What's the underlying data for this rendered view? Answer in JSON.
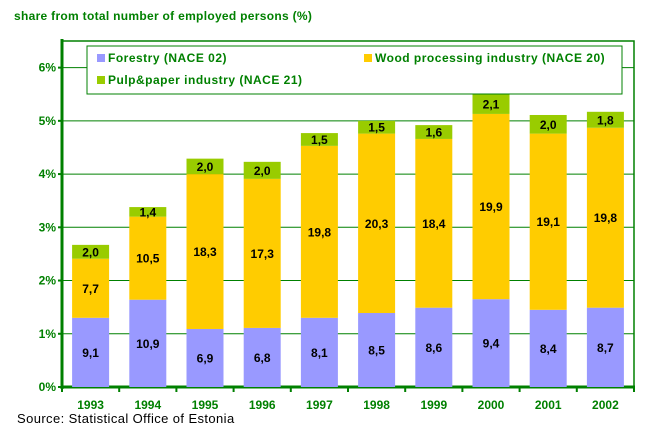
{
  "chart_data": {
    "type": "bar",
    "stacked": true,
    "title": "share from total number of employed persons (%)",
    "xlabel": "",
    "ylabel": "",
    "ylim": [
      0,
      6.5
    ],
    "yticks": [
      0,
      1,
      2,
      3,
      4,
      5,
      6
    ],
    "ytick_labels": [
      "0%",
      "1%",
      "2%",
      "3%",
      "4%",
      "5%",
      "6%"
    ],
    "grid": true,
    "legend_position": "top",
    "categories": [
      "1993",
      "1994",
      "1995",
      "1996",
      "1997",
      "1998",
      "1999",
      "2000",
      "2001",
      "2002"
    ],
    "series": [
      {
        "name": "Forestry (NACE 02)",
        "color": "#9999FF",
        "values": [
          1.3,
          1.64,
          1.09,
          1.11,
          1.3,
          1.39,
          1.49,
          1.65,
          1.45,
          1.49
        ],
        "labels": [
          "9,1",
          "10,9",
          "6,9",
          "6,8",
          "8,1",
          "8,5",
          "8,6",
          "9,4",
          "8,4",
          "8,7"
        ]
      },
      {
        "name": "Wood processing industry (NACE  20)",
        "color": "#FFCC00",
        "values": [
          1.11,
          1.56,
          2.91,
          2.8,
          3.23,
          3.37,
          3.17,
          3.48,
          3.31,
          3.38
        ],
        "labels": [
          "7,7",
          "10,5",
          "18,3",
          "17,3",
          "19,8",
          "20,3",
          "18,4",
          "19,9",
          "19,1",
          "19,8"
        ]
      },
      {
        "name": "Pulp&paper industry (NACE  21)",
        "color": "#99CC00",
        "values": [
          0.26,
          0.18,
          0.29,
          0.32,
          0.24,
          0.24,
          0.26,
          0.38,
          0.35,
          0.3
        ],
        "labels": [
          "2,0",
          "1,4",
          "2,0",
          "2,0",
          "1,5",
          "1,5",
          "1,6",
          "2,1",
          "2,0",
          "1,8"
        ]
      }
    ]
  },
  "source": "Source: Statistical Office of Estonia",
  "colors": {
    "axis": "#008000"
  }
}
